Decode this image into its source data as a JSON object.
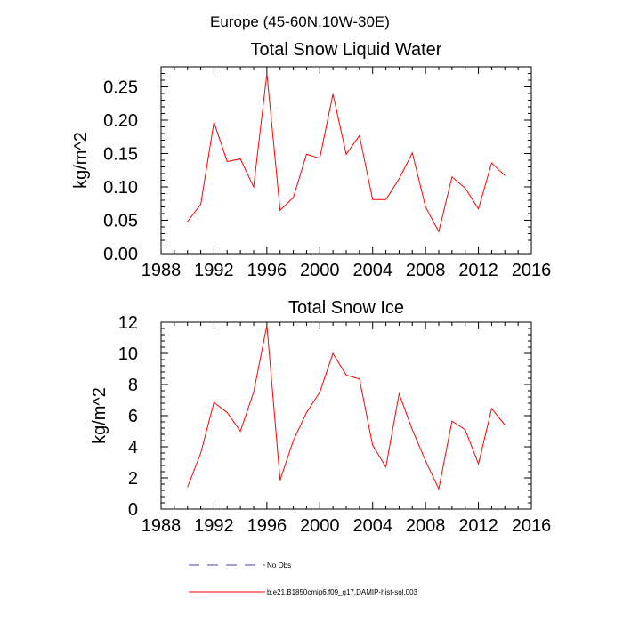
{
  "suptitle": "Europe (45-60N,10W-30E)",
  "chart_data": [
    {
      "type": "line",
      "title": "Total Snow Liquid Water",
      "ylabel": "kg/m^2",
      "xlim": [
        1988,
        2016
      ],
      "ylim": [
        0,
        0.28
      ],
      "xticks": [
        1988,
        1992,
        1996,
        2000,
        2004,
        2008,
        2012,
        2016
      ],
      "xtick_labels": [
        "1988",
        "1992",
        "1996",
        "2000",
        "2004",
        "2008",
        "2012",
        "2016"
      ],
      "yticks": [
        0,
        0.05,
        0.1,
        0.15,
        0.2,
        0.25
      ],
      "ytick_labels": [
        "0.00",
        "0.05",
        "0.10",
        "0.15",
        "0.20",
        "0.25"
      ],
      "series": [
        {
          "color": "#ff0000",
          "x": [
            1990,
            1991,
            1992,
            1993,
            1994,
            1995,
            1996,
            1997,
            1998,
            1999,
            2000,
            2001,
            2002,
            2003,
            2004,
            2005,
            2006,
            2007,
            2008,
            2009,
            2010,
            2011,
            2012,
            2013,
            2014
          ],
          "y": [
            0.048,
            0.074,
            0.197,
            0.138,
            0.142,
            0.1,
            0.27,
            0.065,
            0.084,
            0.149,
            0.143,
            0.239,
            0.149,
            0.177,
            0.081,
            0.081,
            0.112,
            0.151,
            0.07,
            0.033,
            0.115,
            0.098,
            0.067,
            0.136,
            0.117
          ]
        }
      ]
    },
    {
      "type": "line",
      "title": "Total Snow Ice",
      "ylabel": "kg/m^2",
      "xlim": [
        1988,
        2016
      ],
      "ylim": [
        0,
        12
      ],
      "xticks": [
        1988,
        1992,
        1996,
        2000,
        2004,
        2008,
        2012,
        2016
      ],
      "xtick_labels": [
        "1988",
        "1992",
        "1996",
        "2000",
        "2004",
        "2008",
        "2012",
        "2016"
      ],
      "yticks": [
        0,
        2,
        4,
        6,
        8,
        10,
        12
      ],
      "ytick_labels": [
        "0",
        "2",
        "4",
        "6",
        "8",
        "10",
        "12"
      ],
      "series": [
        {
          "color": "#ff0000",
          "x": [
            1990,
            1991,
            1992,
            1993,
            1994,
            1995,
            1996,
            1997,
            1998,
            1999,
            2000,
            2001,
            2002,
            2003,
            2004,
            2005,
            2006,
            2007,
            2008,
            2009,
            2010,
            2011,
            2012,
            2013,
            2014
          ],
          "y": [
            1.4,
            3.6,
            6.85,
            6.2,
            5.0,
            7.5,
            11.8,
            1.85,
            4.4,
            6.2,
            7.5,
            10.0,
            8.6,
            8.35,
            4.1,
            2.7,
            7.4,
            5.1,
            3.1,
            1.3,
            5.65,
            5.1,
            2.9,
            6.45,
            5.4
          ]
        }
      ]
    }
  ],
  "legend": [
    {
      "label": "No Obs",
      "color": "#4444aa",
      "dash": true
    },
    {
      "label": "b.e21.B1850cmip6.f09_g17.DAMIP-hist-sol.003",
      "color": "#ff0000",
      "dash": false
    }
  ]
}
